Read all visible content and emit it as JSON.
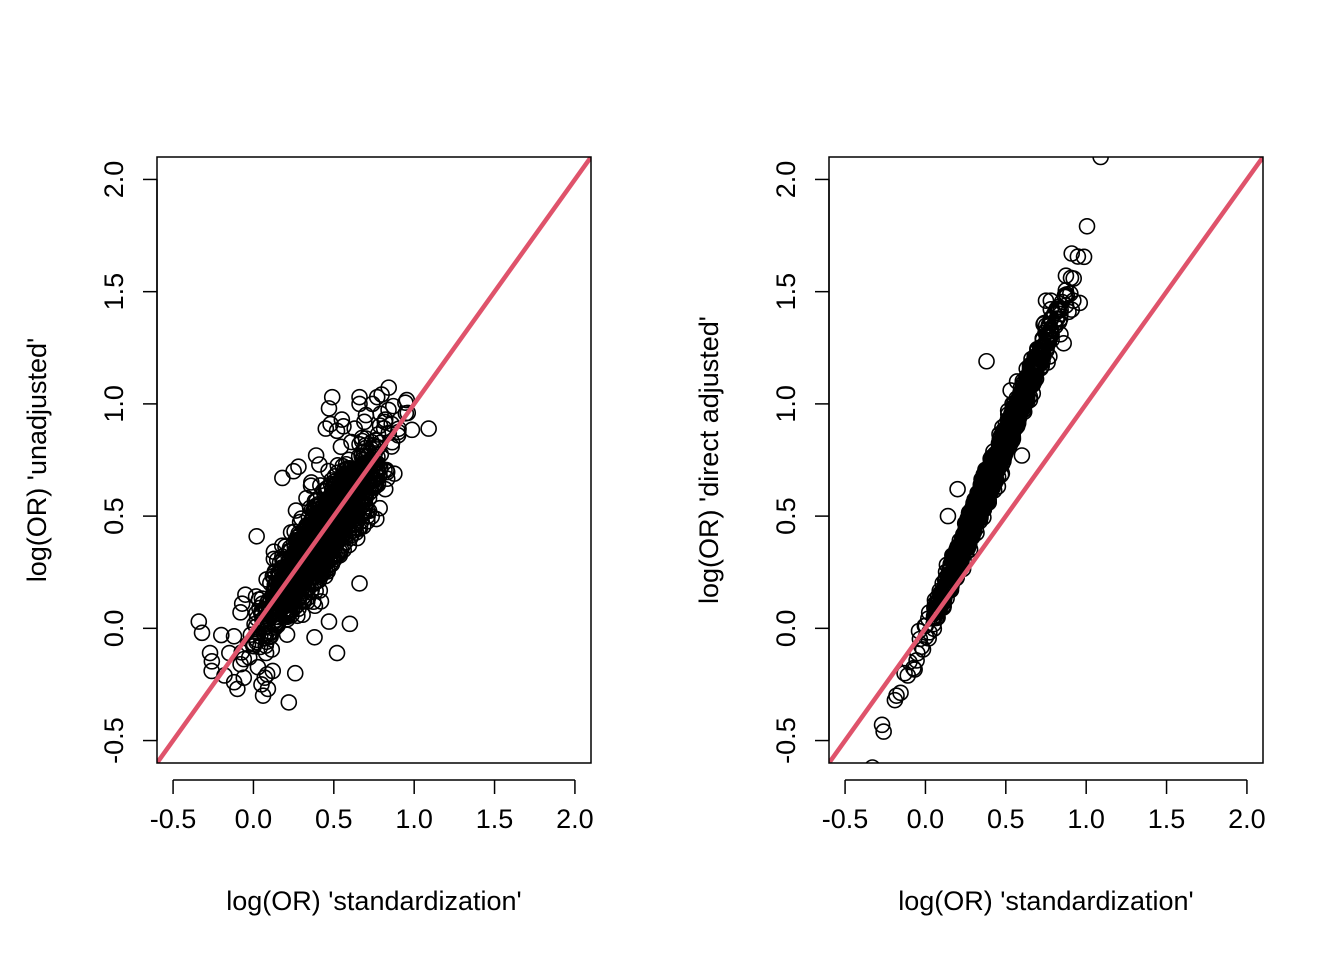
{
  "chart_data": [
    {
      "type": "scatter",
      "title": "",
      "xlabel": "log(OR) 'standardization'",
      "ylabel": "log(OR) 'unadjusted'",
      "xlim": [
        -0.6,
        2.1
      ],
      "ylim": [
        -0.6,
        2.1
      ],
      "x_ticks": [
        "-0.5",
        "0.0",
        "0.5",
        "1.0",
        "1.5",
        "2.0"
      ],
      "y_ticks": [
        "-0.5",
        "0.0",
        "0.5",
        "1.0",
        "1.5",
        "2.0"
      ],
      "point_style": "open-circle",
      "reference_line": {
        "slope": 1,
        "intercept": 0,
        "color": "#df536b"
      },
      "cloud": {
        "center": [
          0.42,
          0.4
        ],
        "x_sd": 0.17,
        "slope": 1.0,
        "residual_sd": 0.09
      },
      "series": [
        {
          "values": [
            [
              -0.34,
              0.03
            ],
            [
              -0.32,
              -0.02
            ],
            [
              -0.27,
              -0.11
            ],
            [
              -0.26,
              -0.19
            ],
            [
              -0.2,
              -0.03
            ],
            [
              -0.18,
              -0.21
            ],
            [
              -0.15,
              -0.11
            ],
            [
              -0.12,
              -0.24
            ],
            [
              -0.1,
              -0.27
            ],
            [
              -0.08,
              -0.16
            ],
            [
              -0.07,
              0.11
            ],
            [
              -0.06,
              -0.22
            ],
            [
              -0.05,
              0.15
            ],
            [
              0.02,
              0.41
            ],
            [
              0.05,
              -0.25
            ],
            [
              0.06,
              -0.3
            ],
            [
              0.07,
              -0.22
            ],
            [
              0.09,
              -0.27
            ],
            [
              0.12,
              -0.19
            ],
            [
              0.18,
              0.67
            ],
            [
              0.22,
              -0.33
            ],
            [
              0.25,
              0.7
            ],
            [
              0.26,
              -0.2
            ],
            [
              0.28,
              0.72
            ],
            [
              0.33,
              0.58
            ],
            [
              0.36,
              0.65
            ],
            [
              0.39,
              0.77
            ],
            [
              0.41,
              0.73
            ],
            [
              0.45,
              0.89
            ],
            [
              0.47,
              0.98
            ],
            [
              0.48,
              0.91
            ],
            [
              0.52,
              0.88
            ],
            [
              0.55,
              0.93
            ],
            [
              0.56,
              0.9
            ],
            [
              0.61,
              0.83
            ],
            [
              0.63,
              0.89
            ],
            [
              0.66,
              0.82
            ],
            [
              0.69,
              0.92
            ],
            [
              0.7,
              0.95
            ],
            [
              0.66,
              0.2
            ],
            [
              0.6,
              0.02
            ],
            [
              0.52,
              -0.11
            ],
            [
              0.47,
              0.03
            ],
            [
              0.38,
              -0.04
            ],
            [
              0.42,
              0.12
            ],
            [
              0.78,
              0.72
            ],
            [
              0.82,
              0.62
            ],
            [
              0.86,
              0.81
            ],
            [
              0.9,
              0.86
            ],
            [
              0.86,
              0.91
            ],
            [
              0.87,
              0.99
            ],
            [
              0.82,
              0.93
            ],
            [
              0.77,
              1.03
            ],
            [
              0.74,
              1.0
            ],
            [
              0.66,
              1.03
            ],
            [
              0.66,
              1.0
            ],
            [
              0.49,
              1.03
            ],
            [
              0.96,
              0.96
            ],
            [
              1.09,
              0.89
            ],
            [
              0.71,
              0.5
            ]
          ]
        }
      ]
    },
    {
      "type": "scatter",
      "title": "",
      "xlabel": "log(OR) 'standardization'",
      "ylabel": "log(OR) 'direct adjusted'",
      "xlim": [
        -0.6,
        2.1
      ],
      "ylim": [
        -0.6,
        2.1
      ],
      "x_ticks": [
        "-0.5",
        "0.0",
        "0.5",
        "1.0",
        "1.5",
        "2.0"
      ],
      "y_ticks": [
        "-0.5",
        "0.0",
        "0.5",
        "1.0",
        "1.5",
        "2.0"
      ],
      "point_style": "open-circle",
      "reference_line": {
        "slope": 1,
        "intercept": 0,
        "color": "#df536b"
      },
      "cloud": {
        "center": [
          0.42,
          0.7
        ],
        "x_sd": 0.17,
        "slope": 1.75,
        "residual_sd": 0.035
      },
      "series": [
        {
          "values": [
            [
              -0.33,
              -0.62
            ],
            [
              -0.27,
              -0.43
            ],
            [
              -0.26,
              -0.46
            ],
            [
              -0.19,
              -0.32
            ],
            [
              -0.18,
              -0.3
            ],
            [
              -0.13,
              -0.2
            ],
            [
              -0.11,
              -0.21
            ],
            [
              -0.1,
              -0.15
            ],
            [
              0.38,
              1.19
            ],
            [
              0.53,
              1.06
            ],
            [
              0.57,
              1.1
            ],
            [
              0.6,
              0.77
            ],
            [
              0.66,
              1.2
            ],
            [
              0.71,
              1.22
            ],
            [
              0.74,
              1.36
            ],
            [
              0.75,
              1.46
            ],
            [
              0.78,
              1.46
            ],
            [
              0.82,
              1.38
            ],
            [
              0.84,
              1.31
            ],
            [
              0.86,
              1.27
            ],
            [
              0.88,
              1.48
            ],
            [
              0.89,
              1.41
            ],
            [
              0.91,
              1.42
            ],
            [
              0.92,
              1.46
            ],
            [
              0.96,
              1.45
            ],
            [
              0.91,
              1.67
            ],
            [
              1.09,
              2.1
            ],
            [
              0.2,
              0.62
            ],
            [
              0.14,
              0.5
            ]
          ]
        }
      ]
    }
  ]
}
